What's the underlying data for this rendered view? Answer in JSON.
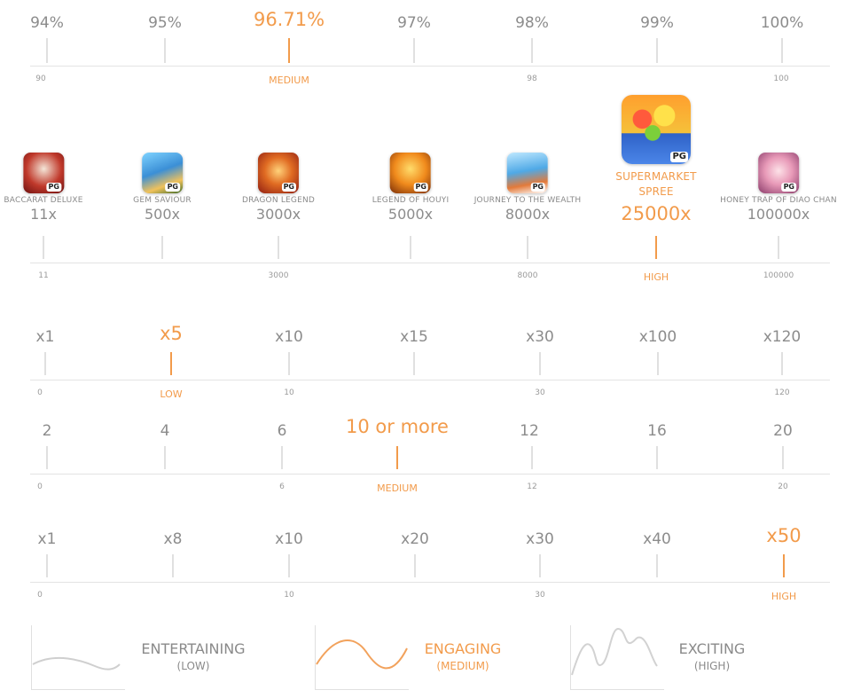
{
  "rtp": {
    "labels": [
      "94%",
      "95%",
      "96.71%",
      "97%",
      "98%",
      "99%",
      "100%"
    ],
    "axis": [
      "90",
      "MEDIUM",
      "98",
      "100"
    ]
  },
  "games": [
    {
      "name": "BACCARAT DELUXE",
      "mult": "11x",
      "icon": "baccarat-deluxe-icon"
    },
    {
      "name": "GEM SAVIOUR",
      "mult": "500x",
      "icon": "gem-saviour-icon"
    },
    {
      "name": "DRAGON LEGEND",
      "mult": "3000x",
      "icon": "dragon-legend-icon"
    },
    {
      "name": "LEGEND OF HOUYI",
      "mult": "5000x",
      "icon": "legend-of-houyi-icon"
    },
    {
      "name": "JOURNEY TO THE WEALTH",
      "mult": "8000x",
      "icon": "journey-to-the-wealth-icon"
    },
    {
      "name": "SUPERMARKET SPREE",
      "mult": "25000x",
      "icon": "supermarket-spree-icon"
    },
    {
      "name": "HONEY TRAP OF DIAO CHAN",
      "mult": "100000x",
      "icon": "honey-trap-of-diao-chan-icon"
    }
  ],
  "games_axis": [
    "11",
    "3000",
    "8000",
    "HIGH",
    "100000"
  ],
  "pg_badge": "PG",
  "row3": {
    "labels": [
      "x1",
      "x5",
      "x10",
      "x15",
      "x30",
      "x100",
      "x120"
    ],
    "axis": [
      "0",
      "LOW",
      "10",
      "30",
      "120"
    ]
  },
  "row4": {
    "labels": [
      "2",
      "4",
      "6",
      "10 or more",
      "12",
      "16",
      "20"
    ],
    "axis": [
      "0",
      "6",
      "MEDIUM",
      "12",
      "20"
    ]
  },
  "row5": {
    "labels": [
      "x1",
      "x8",
      "x10",
      "x20",
      "x30",
      "x40",
      "x50"
    ],
    "axis": [
      "0",
      "10",
      "30",
      "HIGH"
    ]
  },
  "volatility": [
    {
      "title": "ENTERTAINING",
      "sub": "(LOW)"
    },
    {
      "title": "ENGAGING",
      "sub": "(MEDIUM)"
    },
    {
      "title": "EXCITING",
      "sub": "(HIGH)"
    }
  ],
  "colors": {
    "accent": "#f29b4b",
    "muted": "#8c8c8c",
    "line": "#e0e0e0"
  }
}
